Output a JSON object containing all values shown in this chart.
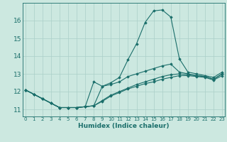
{
  "xlabel": "Humidex (Indice chaleur)",
  "background_color": "#cce8e0",
  "grid_color": "#aacfc8",
  "line_color": "#1a6e6a",
  "x_ticks": [
    0,
    1,
    2,
    3,
    4,
    5,
    6,
    7,
    8,
    9,
    10,
    11,
    12,
    13,
    14,
    15,
    16,
    17,
    18,
    19,
    20,
    21,
    22,
    23
  ],
  "y_ticks": [
    11,
    12,
    13,
    14,
    15,
    16
  ],
  "xlim": [
    -0.3,
    23.3
  ],
  "ylim": [
    10.6,
    17.0
  ],
  "curves": [
    {
      "x": [
        0,
        1,
        2,
        3,
        4,
        5,
        6,
        7,
        8,
        9,
        10,
        11,
        12,
        13,
        14,
        15,
        16,
        17,
        18,
        19,
        20,
        21,
        22,
        23
      ],
      "y": [
        12.1,
        11.85,
        11.6,
        11.35,
        11.1,
        11.1,
        11.1,
        11.15,
        11.2,
        12.3,
        12.5,
        12.8,
        13.8,
        14.7,
        15.9,
        16.55,
        16.6,
        16.2,
        13.85,
        13.1,
        13.0,
        12.9,
        12.8,
        13.1
      ]
    },
    {
      "x": [
        0,
        1,
        2,
        3,
        4,
        5,
        6,
        7,
        8,
        9,
        10,
        11,
        12,
        13,
        14,
        15,
        16,
        17,
        18,
        19,
        20,
        21,
        22,
        23
      ],
      "y": [
        12.1,
        11.85,
        11.6,
        11.35,
        11.1,
        11.1,
        11.1,
        11.15,
        12.55,
        12.3,
        12.4,
        12.55,
        12.85,
        13.0,
        13.15,
        13.3,
        13.45,
        13.55,
        13.1,
        13.0,
        12.9,
        12.85,
        12.7,
        13.0
      ]
    },
    {
      "x": [
        0,
        1,
        2,
        3,
        4,
        5,
        6,
        7,
        8,
        9,
        10,
        11,
        12,
        13,
        14,
        15,
        16,
        17,
        18,
        19,
        20,
        21,
        22,
        23
      ],
      "y": [
        12.1,
        11.85,
        11.6,
        11.35,
        11.1,
        11.1,
        11.1,
        11.15,
        11.2,
        11.5,
        11.8,
        12.0,
        12.2,
        12.4,
        12.55,
        12.7,
        12.85,
        12.95,
        13.0,
        12.95,
        12.9,
        12.85,
        12.7,
        13.0
      ]
    },
    {
      "x": [
        0,
        1,
        2,
        3,
        4,
        5,
        6,
        7,
        8,
        9,
        10,
        11,
        12,
        13,
        14,
        15,
        16,
        17,
        18,
        19,
        20,
        21,
        22,
        23
      ],
      "y": [
        12.1,
        11.85,
        11.6,
        11.35,
        11.1,
        11.1,
        11.1,
        11.15,
        11.2,
        11.45,
        11.75,
        11.95,
        12.15,
        12.3,
        12.45,
        12.55,
        12.7,
        12.8,
        12.9,
        12.9,
        12.85,
        12.8,
        12.65,
        12.9
      ]
    }
  ]
}
